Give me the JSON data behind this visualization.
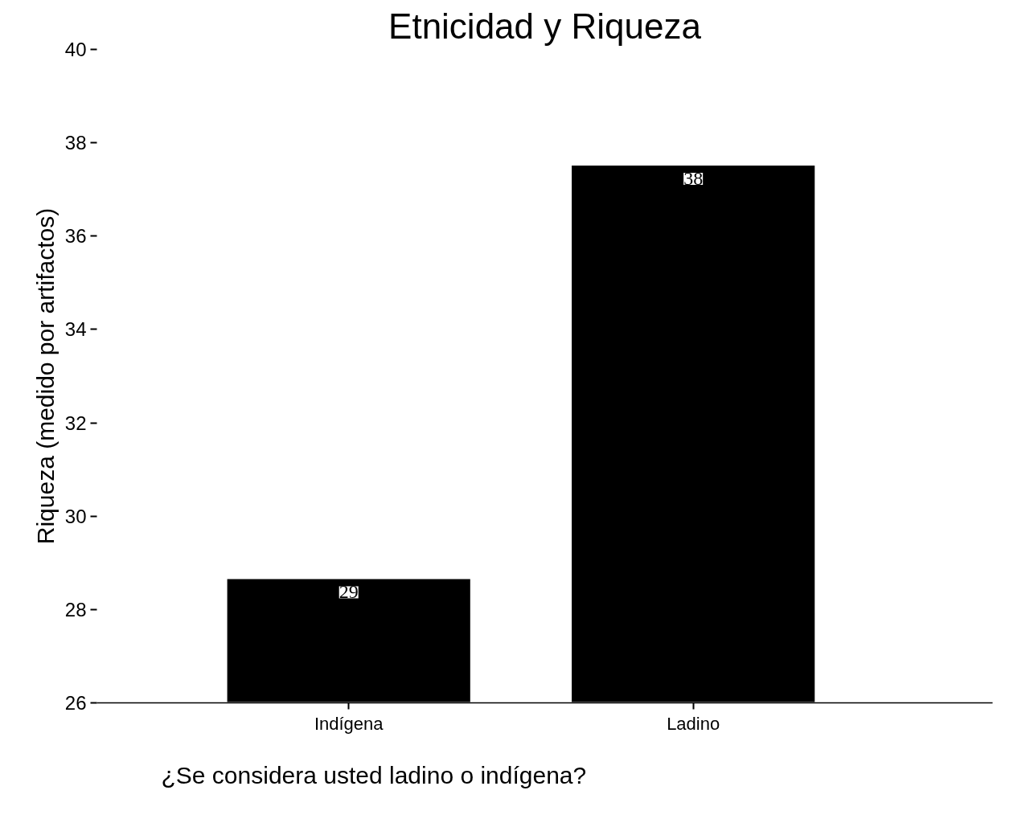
{
  "chart_data": {
    "type": "bar",
    "title": "Etnicidad y Riqueza",
    "xlabel": "¿Se considera usted ladino o indígena?",
    "ylabel": "Riqueza (medido por artifactos)",
    "categories": [
      "Indígena",
      "Ladino"
    ],
    "values": [
      28.67,
      37.53
    ],
    "value_labels": [
      "29",
      "38"
    ],
    "color": "#000000",
    "ylim": [
      26,
      40
    ],
    "yticks": [
      26,
      28,
      30,
      32,
      34,
      36,
      38,
      40
    ],
    "grid": false
  }
}
